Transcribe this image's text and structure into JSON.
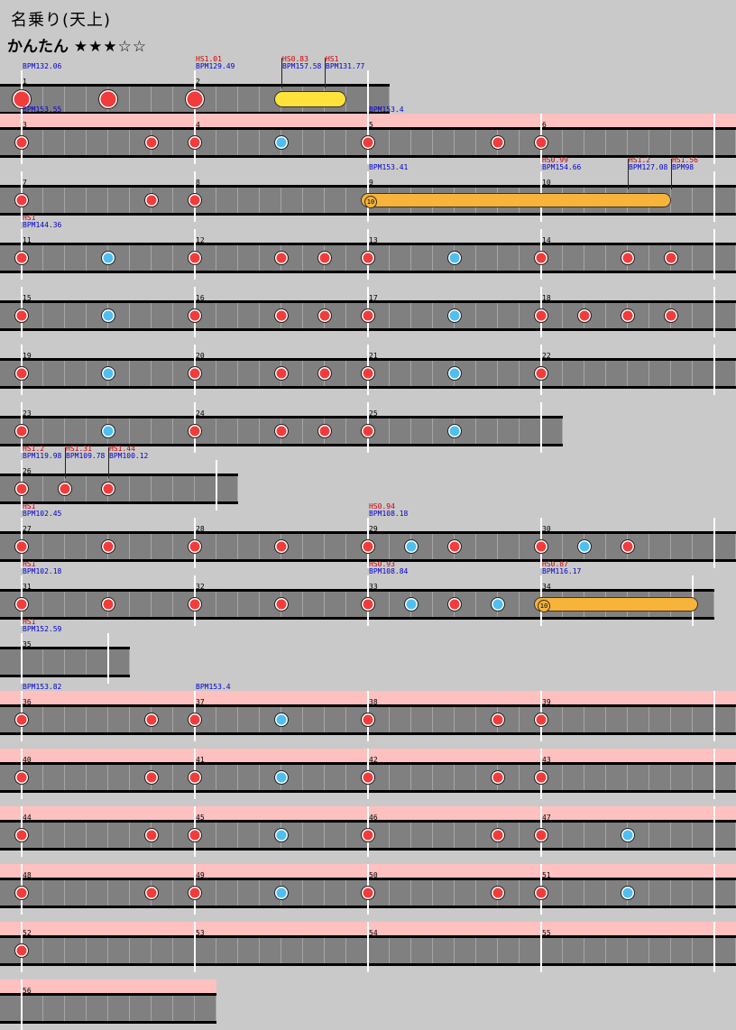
{
  "title": "名乗り(天上)",
  "difficulty": {
    "label": "かんたん",
    "stars": "★★★☆☆"
  },
  "colors": {
    "background": "#c9c9c9",
    "lane": "#808080",
    "gogo": "#ffc0c0",
    "don": "#f23c3c",
    "ka": "#4fbff0",
    "drumroll": "#ffe33a",
    "balloon": "#f7b33a",
    "bpm_text": "#0000cc",
    "hs_text": "#cc0000"
  },
  "rows": [
    {
      "measures": [
        "1",
        "2"
      ],
      "bpm": [
        "BPM132.06",
        "BPM129.49",
        "BPM157.58",
        "BPM131.77"
      ],
      "hs": [
        "HS1.01",
        "HS0.83",
        "HS1"
      ]
    },
    {
      "measures": [
        "3",
        "4",
        "5",
        "6"
      ],
      "bpm": [
        "BPM153.55",
        "BPM153.4"
      ],
      "hs": []
    },
    {
      "measures": [
        "7",
        "8",
        "9",
        "10"
      ],
      "bpm": [
        "BPM153.41",
        "BPM154.66",
        "BPM127.08",
        "BPM98"
      ],
      "hs": [
        "HS0.99",
        "HS1.2",
        "HS1.56"
      ],
      "balloon": "10"
    },
    {
      "measures": [
        "11",
        "12",
        "13",
        "14"
      ],
      "bpm": [
        "BPM144.36"
      ],
      "hs": [
        "HS1"
      ]
    },
    {
      "measures": [
        "15",
        "16",
        "17",
        "18"
      ],
      "bpm": [],
      "hs": []
    },
    {
      "measures": [
        "19",
        "20",
        "21",
        "22"
      ],
      "bpm": [],
      "hs": []
    },
    {
      "measures": [
        "23",
        "24",
        "25"
      ],
      "bpm": [],
      "hs": []
    },
    {
      "measures": [
        "26"
      ],
      "bpm": [
        "BPM119.98",
        "BPM109.78",
        "BPM100.12"
      ],
      "hs": [
        "HS1.2",
        "HS1.31",
        "HS1.44"
      ]
    },
    {
      "measures": [
        "27",
        "28",
        "29",
        "30"
      ],
      "bpm": [
        "BPM102.45",
        "BPM108.18"
      ],
      "hs": [
        "HS1",
        "HS0.94"
      ]
    },
    {
      "measures": [
        "31",
        "32",
        "33",
        "34"
      ],
      "bpm": [
        "BPM102.18",
        "BPM108.84",
        "BPM116.17"
      ],
      "hs": [
        "HS1",
        "HS0.93",
        "HS0.87"
      ],
      "balloon": "10"
    },
    {
      "measures": [
        "35"
      ],
      "bpm": [
        "BPM152.59"
      ],
      "hs": [
        "HS1"
      ]
    },
    {
      "measures": [
        "36",
        "37",
        "38",
        "39"
      ],
      "bpm": [
        "BPM153.82",
        "BPM153.4"
      ],
      "hs": []
    },
    {
      "measures": [
        "40",
        "41",
        "42",
        "43"
      ],
      "bpm": [],
      "hs": []
    },
    {
      "measures": [
        "44",
        "45",
        "46",
        "47"
      ],
      "bpm": [],
      "hs": []
    },
    {
      "measures": [
        "48",
        "49",
        "50",
        "51"
      ],
      "bpm": [],
      "hs": []
    },
    {
      "measures": [
        "52",
        "53",
        "54",
        "55"
      ],
      "bpm": [],
      "hs": []
    },
    {
      "measures": [
        "56"
      ],
      "bpm": [],
      "hs": []
    }
  ]
}
